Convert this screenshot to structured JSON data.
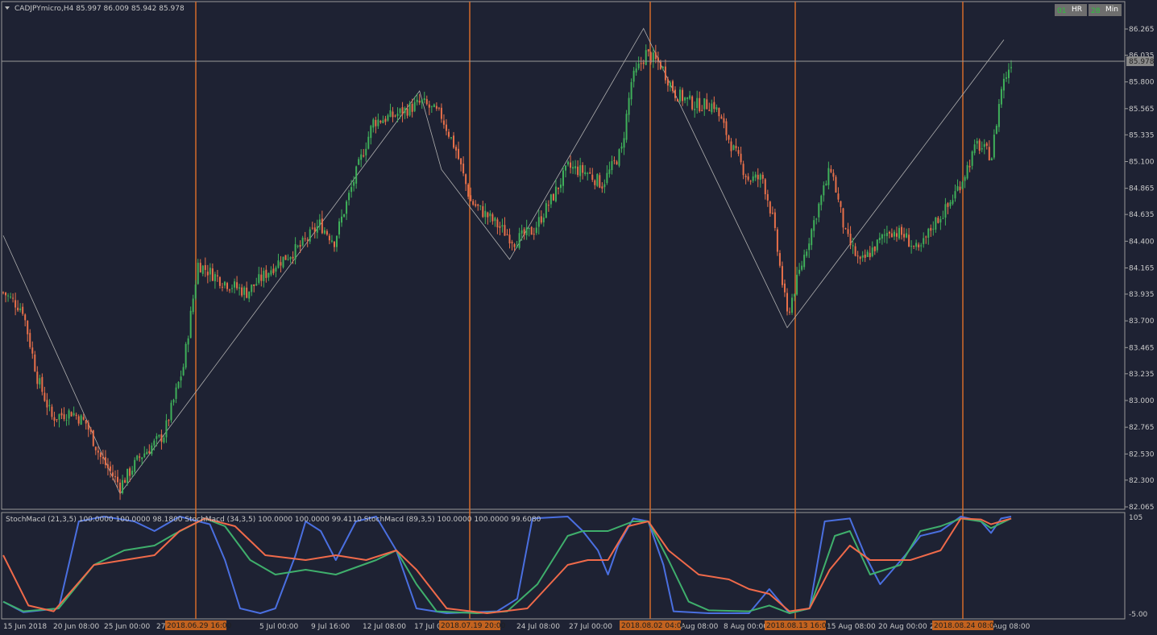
{
  "header": {
    "title": "CADJPYmicro,H4  85.997 86.009 85.942 85.978"
  },
  "timeframe_buttons": [
    {
      "label": "HR",
      "prefix": "01"
    },
    {
      "label": "Min",
      "prefix": "28"
    }
  ],
  "indicator": {
    "label": "StochMacd (21,3,5) 100.0000 100.0000 98.1800  StochMacd (34,3,5) 100.0000 100.0000 99.4110  StochMacd (89,3,5) 100.0000 100.0000 99.6080",
    "top_label": "105",
    "bottom_label": "-5.00"
  },
  "current_price": "85.978",
  "colors": {
    "background": "#1e2233",
    "bull": "#3fb05a",
    "bear": "#e8704a",
    "vline": "#d36a2a",
    "stoch_fast": "#4a6fe0",
    "stoch_mid": "#3faf6c",
    "stoch_slow": "#f06a4a"
  },
  "chart_data": {
    "type": "candlestick",
    "symbol": "CADJPYmicro",
    "timeframe": "H4",
    "ylim": [
      82.065,
      86.38
    ],
    "y_ticks": [
      "86.265",
      "86.035",
      "85.800",
      "85.565",
      "85.335",
      "85.100",
      "84.865",
      "84.635",
      "84.400",
      "84.165",
      "83.935",
      "83.700",
      "83.465",
      "83.235",
      "83.000",
      "82.765",
      "82.530",
      "82.300",
      "82.065"
    ],
    "x_labels": [
      "15 Jun 2018",
      "20 Jun 08:00",
      "25 Jun 00:00",
      "27",
      "5 Jul 00:00",
      "9 Jul 16:00",
      "12 Jul 08:00",
      "17 Jul 0",
      "24 Jul 08:00",
      "27 Jul 00:00",
      "Aug 08:00",
      "8 Aug 00:00",
      "15 Aug 08:00",
      "20 Aug 00:00",
      "2",
      "Aug 08:00"
    ],
    "highlighted_times": [
      "2018.06.29 16:00",
      "2018.07.19 20:00",
      "2018.08.02 04:00",
      "2018.08.13 16:00",
      "2018.08.24 08:00"
    ],
    "zigzag": [
      {
        "i": 0,
        "price": 84.45
      },
      {
        "i": 48,
        "price": 82.18
      },
      {
        "i": 171,
        "price": 85.72
      },
      {
        "i": 180,
        "price": 85.03
      },
      {
        "i": 208,
        "price": 84.24
      },
      {
        "i": 263,
        "price": 86.27
      },
      {
        "i": 322,
        "price": 83.64
      },
      {
        "i": 411,
        "price": 86.17
      }
    ],
    "price_anchors": [
      [
        0,
        83.95
      ],
      [
        8,
        83.8
      ],
      [
        14,
        83.2
      ],
      [
        20,
        82.85
      ],
      [
        28,
        82.9
      ],
      [
        34,
        82.8
      ],
      [
        40,
        82.5
      ],
      [
        48,
        82.25
      ],
      [
        56,
        82.5
      ],
      [
        66,
        82.7
      ],
      [
        74,
        83.3
      ],
      [
        80,
        84.2
      ],
      [
        90,
        84.05
      ],
      [
        100,
        83.95
      ],
      [
        112,
        84.2
      ],
      [
        122,
        84.35
      ],
      [
        130,
        84.55
      ],
      [
        136,
        84.4
      ],
      [
        145,
        85.0
      ],
      [
        152,
        85.45
      ],
      [
        160,
        85.5
      ],
      [
        172,
        85.62
      ],
      [
        180,
        85.5
      ],
      [
        186,
        85.2
      ],
      [
        192,
        84.75
      ],
      [
        200,
        84.6
      ],
      [
        210,
        84.4
      ],
      [
        218,
        84.5
      ],
      [
        226,
        84.8
      ],
      [
        232,
        85.05
      ],
      [
        240,
        85.0
      ],
      [
        246,
        84.9
      ],
      [
        254,
        85.2
      ],
      [
        258,
        85.8
      ],
      [
        264,
        86.05
      ],
      [
        270,
        85.95
      ],
      [
        276,
        85.7
      ],
      [
        284,
        85.6
      ],
      [
        292,
        85.6
      ],
      [
        300,
        85.2
      ],
      [
        306,
        84.95
      ],
      [
        312,
        84.95
      ],
      [
        316,
        84.6
      ],
      [
        322,
        83.75
      ],
      [
        328,
        84.2
      ],
      [
        334,
        84.65
      ],
      [
        340,
        85.05
      ],
      [
        346,
        84.45
      ],
      [
        352,
        84.2
      ],
      [
        358,
        84.35
      ],
      [
        364,
        84.5
      ],
      [
        370,
        84.45
      ],
      [
        376,
        84.3
      ],
      [
        382,
        84.55
      ],
      [
        388,
        84.7
      ],
      [
        394,
        84.95
      ],
      [
        400,
        85.25
      ],
      [
        406,
        85.15
      ],
      [
        410,
        85.75
      ],
      [
        414,
        85.978
      ]
    ],
    "stoch_series": [
      {
        "name": "StochMacd (21,3,5)",
        "points": [
          [
            0,
            0.12
          ],
          [
            0.02,
            0.01
          ],
          [
            0.055,
            0.05
          ],
          [
            0.075,
            0.95
          ],
          [
            0.1,
            1
          ],
          [
            0.13,
            0.95
          ],
          [
            0.15,
            0.85
          ],
          [
            0.175,
            1
          ],
          [
            0.205,
            0.92
          ],
          [
            0.22,
            0.55
          ],
          [
            0.235,
            0.05
          ],
          [
            0.255,
            0
          ],
          [
            0.27,
            0.05
          ],
          [
            0.29,
            0.6
          ],
          [
            0.3,
            0.95
          ],
          [
            0.315,
            0.85
          ],
          [
            0.33,
            0.55
          ],
          [
            0.35,
            0.95
          ],
          [
            0.37,
            1
          ],
          [
            0.39,
            0.65
          ],
          [
            0.41,
            0.05
          ],
          [
            0.44,
            0
          ],
          [
            0.49,
            0.02
          ],
          [
            0.51,
            0.15
          ],
          [
            0.525,
            0.98
          ],
          [
            0.56,
            1
          ],
          [
            0.575,
            0.85
          ],
          [
            0.59,
            0.65
          ],
          [
            0.6,
            0.4
          ],
          [
            0.61,
            0.7
          ],
          [
            0.625,
            0.98
          ],
          [
            0.64,
            0.95
          ],
          [
            0.655,
            0.5
          ],
          [
            0.665,
            0.02
          ],
          [
            0.7,
            0
          ],
          [
            0.74,
            0
          ],
          [
            0.76,
            0.25
          ],
          [
            0.78,
            0
          ],
          [
            0.8,
            0.05
          ],
          [
            0.815,
            0.95
          ],
          [
            0.84,
            0.98
          ],
          [
            0.855,
            0.6
          ],
          [
            0.87,
            0.3
          ],
          [
            0.895,
            0.6
          ],
          [
            0.91,
            0.8
          ],
          [
            0.93,
            0.85
          ],
          [
            0.95,
            1
          ],
          [
            0.97,
            0.95
          ],
          [
            0.98,
            0.83
          ],
          [
            0.99,
            0.98
          ],
          [
            1,
            1
          ]
        ]
      },
      {
        "name": "StochMacd (34,3,5)",
        "points": [
          [
            0,
            0.12
          ],
          [
            0.02,
            0.02
          ],
          [
            0.055,
            0.05
          ],
          [
            0.09,
            0.5
          ],
          [
            0.12,
            0.65
          ],
          [
            0.15,
            0.7
          ],
          [
            0.17,
            0.82
          ],
          [
            0.2,
            0.98
          ],
          [
            0.22,
            0.9
          ],
          [
            0.245,
            0.55
          ],
          [
            0.27,
            0.4
          ],
          [
            0.3,
            0.45
          ],
          [
            0.33,
            0.4
          ],
          [
            0.37,
            0.55
          ],
          [
            0.39,
            0.65
          ],
          [
            0.41,
            0.3
          ],
          [
            0.43,
            0.02
          ],
          [
            0.47,
            0
          ],
          [
            0.5,
            0.02
          ],
          [
            0.53,
            0.3
          ],
          [
            0.56,
            0.8
          ],
          [
            0.575,
            0.85
          ],
          [
            0.6,
            0.85
          ],
          [
            0.625,
            0.95
          ],
          [
            0.64,
            0.95
          ],
          [
            0.66,
            0.55
          ],
          [
            0.68,
            0.12
          ],
          [
            0.7,
            0.03
          ],
          [
            0.74,
            0.02
          ],
          [
            0.76,
            0.08
          ],
          [
            0.78,
            0
          ],
          [
            0.8,
            0.05
          ],
          [
            0.825,
            0.8
          ],
          [
            0.84,
            0.85
          ],
          [
            0.86,
            0.4
          ],
          [
            0.89,
            0.5
          ],
          [
            0.91,
            0.85
          ],
          [
            0.93,
            0.9
          ],
          [
            0.95,
            0.98
          ],
          [
            0.97,
            0.95
          ],
          [
            0.98,
            0.88
          ],
          [
            1,
            0.98
          ]
        ]
      },
      {
        "name": "StochMacd (89,3,5)",
        "points": [
          [
            0,
            0.6
          ],
          [
            0.025,
            0.08
          ],
          [
            0.05,
            0.02
          ],
          [
            0.09,
            0.5
          ],
          [
            0.12,
            0.55
          ],
          [
            0.15,
            0.6
          ],
          [
            0.175,
            0.85
          ],
          [
            0.2,
            0.98
          ],
          [
            0.23,
            0.9
          ],
          [
            0.26,
            0.6
          ],
          [
            0.3,
            0.55
          ],
          [
            0.33,
            0.6
          ],
          [
            0.36,
            0.55
          ],
          [
            0.39,
            0.65
          ],
          [
            0.41,
            0.45
          ],
          [
            0.44,
            0.05
          ],
          [
            0.48,
            0
          ],
          [
            0.52,
            0.05
          ],
          [
            0.56,
            0.5
          ],
          [
            0.58,
            0.55
          ],
          [
            0.6,
            0.55
          ],
          [
            0.62,
            0.9
          ],
          [
            0.64,
            0.95
          ],
          [
            0.66,
            0.65
          ],
          [
            0.69,
            0.4
          ],
          [
            0.72,
            0.35
          ],
          [
            0.74,
            0.25
          ],
          [
            0.76,
            0.2
          ],
          [
            0.78,
            0.02
          ],
          [
            0.8,
            0.05
          ],
          [
            0.82,
            0.45
          ],
          [
            0.84,
            0.7
          ],
          [
            0.86,
            0.55
          ],
          [
            0.9,
            0.55
          ],
          [
            0.93,
            0.65
          ],
          [
            0.95,
            0.98
          ],
          [
            0.97,
            0.97
          ],
          [
            0.98,
            0.92
          ],
          [
            1,
            0.98
          ]
        ]
      }
    ]
  }
}
